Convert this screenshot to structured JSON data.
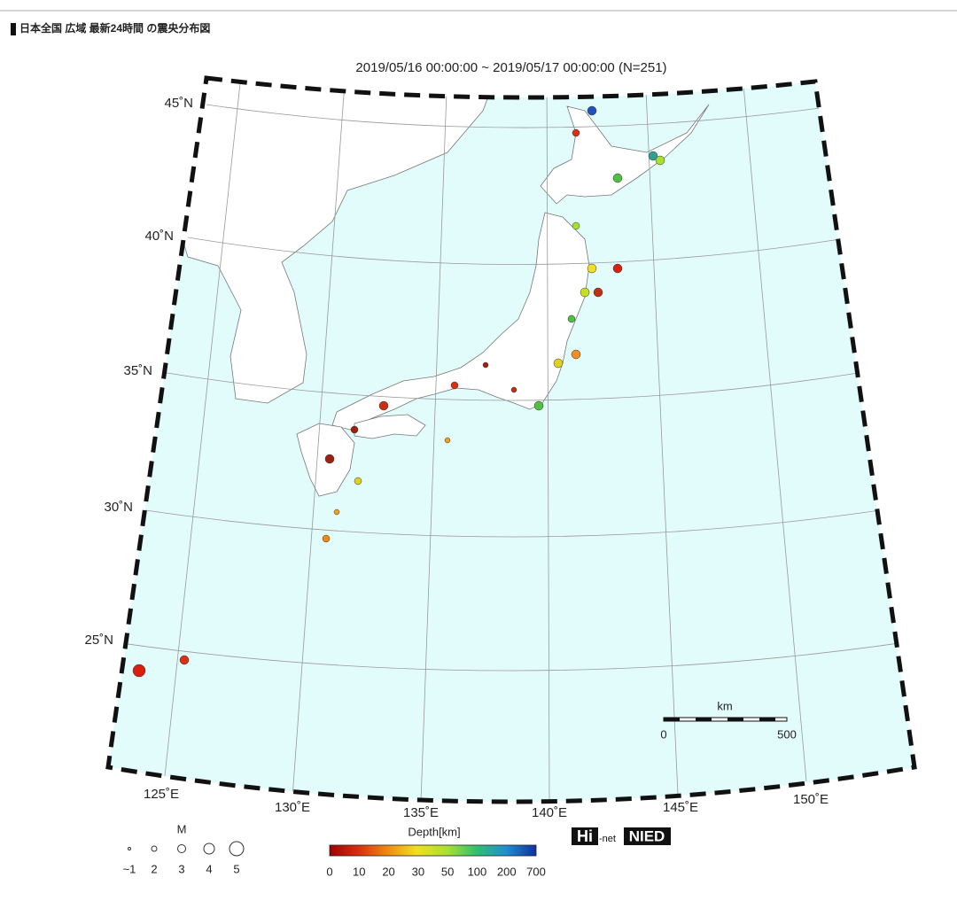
{
  "header": {
    "title": "日本全国 広域 最新24時間 の震央分布図"
  },
  "map": {
    "title": "2019/05/16 00:00:00 ~ 2019/05/17 00:00:00 (N=251)",
    "lat_labels": [
      "45˚N",
      "40˚N",
      "35˚N",
      "30˚N",
      "25˚N"
    ],
    "lon_labels": [
      "125˚E",
      "130˚E",
      "135˚E",
      "140˚E",
      "145˚E",
      "150˚E"
    ],
    "scale": {
      "unit": "km",
      "labels": [
        "0",
        "500"
      ]
    }
  },
  "legend": {
    "magnitude": {
      "title": "M",
      "labels": [
        "~1",
        "2",
        "3",
        "4",
        "5"
      ]
    },
    "depth": {
      "title": "Depth[km]",
      "labels": [
        "0",
        "10",
        "20",
        "30",
        "50",
        "100",
        "200",
        "700"
      ]
    }
  },
  "logo": {
    "hi": "Hi",
    "net": "-net",
    "nied": "NIED"
  }
}
